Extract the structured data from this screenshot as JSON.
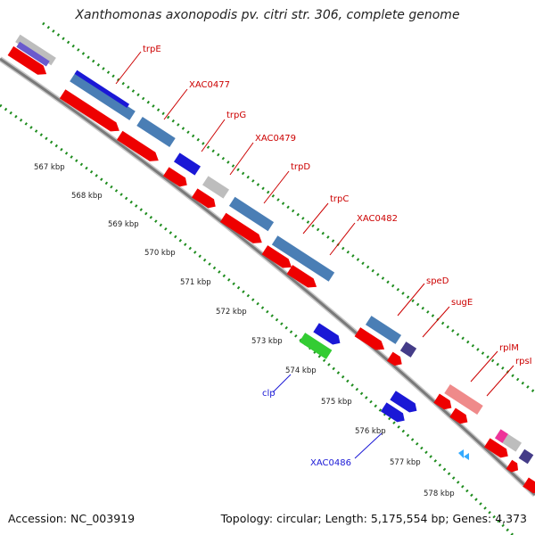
{
  "title": "Xanthomonas axonopodis pv. citri str. 306, complete genome",
  "footer": {
    "accession": "Accession: NC_003919",
    "summary": "Topology: circular; Length: 5,175,554 bp; Genes: 4,373"
  },
  "colors": {
    "cds_forward": "#4a7eb5",
    "cds_reverse": "#ee0000",
    "gene_highlight": "#1a18d6",
    "label_red": "#cc0000",
    "label_blue": "#1a18d6",
    "tick_green": "#1e8c1e",
    "backbone": "#888888"
  },
  "kbp_ticks": [
    "567 kbp",
    "568 kbp",
    "569 kbp",
    "570 kbp",
    "571 kbp",
    "572 kbp",
    "573 kbp",
    "574 kbp",
    "575 kbp",
    "576 kbp",
    "577 kbp",
    "578 kbp"
  ],
  "gene_labels": [
    {
      "text": "trpE",
      "color": "red"
    },
    {
      "text": "XAC0477",
      "color": "red"
    },
    {
      "text": "trpG",
      "color": "red"
    },
    {
      "text": "XAC0479",
      "color": "red"
    },
    {
      "text": "trpD",
      "color": "red"
    },
    {
      "text": "trpC",
      "color": "red"
    },
    {
      "text": "XAC0482",
      "color": "red"
    },
    {
      "text": "speD",
      "color": "red"
    },
    {
      "text": "sugE",
      "color": "red"
    },
    {
      "text": "rplM",
      "color": "red"
    },
    {
      "text": "rpsI",
      "color": "red"
    },
    {
      "text": "clp",
      "color": "blue"
    },
    {
      "text": "XAC0486",
      "color": "blue"
    }
  ]
}
